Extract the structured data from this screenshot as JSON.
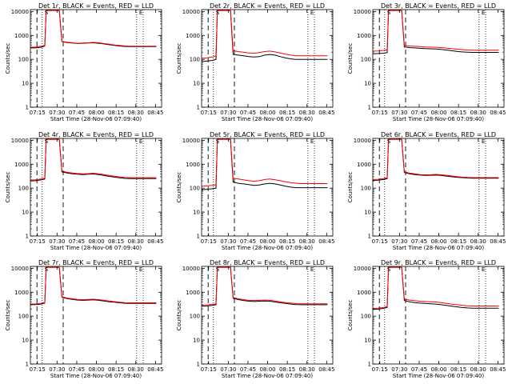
{
  "chart_data": [
    {
      "type": "line",
      "title": "Det 1r, BLACK = Events, RED = LLD",
      "xlabel": "Start Time (28-Nov-06 07:09:40)",
      "ylabel": "Counts/sec",
      "series": [
        {
          "name": "BLACK = Events",
          "color": "#000000",
          "values": [
            300,
            300,
            320,
            360,
            11000,
            11000,
            11000,
            550,
            500,
            480,
            460,
            470,
            480,
            490,
            470,
            440,
            410,
            380,
            360,
            345,
            340,
            340,
            340,
            340
          ]
        },
        {
          "name": "RED = LLD",
          "color": "#ff0000",
          "values": [
            320,
            330,
            350,
            380,
            11000,
            11000,
            11000,
            560,
            520,
            490,
            470,
            480,
            490,
            510,
            490,
            460,
            430,
            400,
            380,
            360,
            355,
            355,
            355,
            355
          ]
        }
      ]
    },
    {
      "type": "line",
      "title": "Det 2r, BLACK = Events, RED = LLD",
      "xlabel": "Start Time (28-Nov-06 07:09:40)",
      "ylabel": "Counts/sec",
      "series": [
        {
          "name": "BLACK = Events",
          "color": "#000000",
          "values": [
            80,
            85,
            90,
            100,
            11000,
            11000,
            11000,
            160,
            150,
            140,
            130,
            125,
            130,
            150,
            160,
            150,
            130,
            115,
            105,
            100,
            100,
            100,
            100,
            100
          ]
        },
        {
          "name": "RED = LLD",
          "color": "#ff0000",
          "values": [
            110,
            115,
            125,
            140,
            11000,
            11000,
            11000,
            230,
            210,
            200,
            185,
            180,
            190,
            210,
            220,
            205,
            185,
            165,
            150,
            140,
            140,
            140,
            140,
            140
          ]
        }
      ]
    },
    {
      "type": "line",
      "title": "Det 3r, BLACK = Events, RED = LLD",
      "xlabel": "Start Time (28-Nov-06 07:09:40)",
      "ylabel": "Counts/sec",
      "series": [
        {
          "name": "BLACK = Events",
          "color": "#000000",
          "values": [
            170,
            175,
            180,
            190,
            11000,
            11000,
            11000,
            330,
            310,
            300,
            290,
            280,
            275,
            270,
            260,
            245,
            230,
            215,
            205,
            200,
            195,
            195,
            195,
            195
          ]
        },
        {
          "name": "RED = LLD",
          "color": "#ff0000",
          "values": [
            220,
            225,
            235,
            250,
            11000,
            11000,
            11000,
            380,
            360,
            350,
            340,
            330,
            325,
            320,
            310,
            295,
            280,
            265,
            255,
            245,
            240,
            240,
            240,
            240
          ]
        }
      ]
    },
    {
      "type": "line",
      "title": "Det 4r, BLACK = Events, RED = LLD",
      "xlabel": "Start Time (28-Nov-06 07:09:40)",
      "ylabel": "Counts/sec",
      "series": [
        {
          "name": "BLACK = Events",
          "color": "#000000",
          "values": [
            200,
            205,
            220,
            240,
            11000,
            11000,
            11000,
            480,
            430,
            400,
            380,
            370,
            380,
            390,
            370,
            340,
            310,
            290,
            270,
            255,
            250,
            250,
            250,
            250
          ]
        },
        {
          "name": "RED = LLD",
          "color": "#ff0000",
          "values": [
            220,
            225,
            240,
            260,
            11000,
            11000,
            11000,
            520,
            460,
            430,
            410,
            395,
            405,
            420,
            400,
            370,
            340,
            315,
            295,
            280,
            275,
            275,
            275,
            275
          ]
        }
      ]
    },
    {
      "type": "line",
      "title": "Det 5r, BLACK = Events, RED = LLD",
      "xlabel": "Start Time (28-Nov-06 07:09:40)",
      "ylabel": "Counts/sec",
      "series": [
        {
          "name": "BLACK = Events",
          "color": "#000000",
          "values": [
            85,
            90,
            95,
            100,
            11000,
            11000,
            11000,
            180,
            160,
            150,
            140,
            130,
            135,
            150,
            160,
            150,
            135,
            120,
            110,
            105,
            105,
            105,
            105,
            105
          ]
        },
        {
          "name": "RED = LLD",
          "color": "#ff0000",
          "values": [
            120,
            125,
            130,
            140,
            11000,
            11000,
            11000,
            260,
            240,
            220,
            205,
            195,
            205,
            230,
            240,
            225,
            205,
            185,
            170,
            160,
            155,
            155,
            155,
            155
          ]
        }
      ]
    },
    {
      "type": "line",
      "title": "Det 6r, BLACK = Events, RED = LLD",
      "xlabel": "Start Time (28-Nov-06 07:09:40)",
      "ylabel": "Counts/sec",
      "series": [
        {
          "name": "BLACK = Events",
          "color": "#000000",
          "values": [
            210,
            215,
            230,
            250,
            11000,
            11000,
            11000,
            450,
            400,
            370,
            350,
            340,
            345,
            350,
            340,
            320,
            300,
            285,
            275,
            265,
            260,
            260,
            260,
            260
          ]
        },
        {
          "name": "RED = LLD",
          "color": "#ff0000",
          "values": [
            230,
            235,
            250,
            270,
            11000,
            11000,
            11000,
            480,
            425,
            395,
            370,
            360,
            365,
            375,
            365,
            345,
            325,
            305,
            290,
            280,
            275,
            275,
            275,
            275
          ]
        }
      ]
    },
    {
      "type": "line",
      "title": "Det 7r, BLACK = Events, RED = LLD",
      "xlabel": "Start Time (28-Nov-06 07:09:40)",
      "ylabel": "Counts/sec",
      "series": [
        {
          "name": "BLACK = Events",
          "color": "#000000",
          "values": [
            300,
            305,
            320,
            350,
            11000,
            11000,
            11000,
            620,
            540,
            500,
            470,
            460,
            470,
            480,
            460,
            430,
            400,
            380,
            360,
            345,
            340,
            340,
            340,
            340
          ]
        },
        {
          "name": "RED = LLD",
          "color": "#ff0000",
          "values": [
            320,
            325,
            340,
            370,
            11000,
            11000,
            11000,
            650,
            570,
            530,
            500,
            490,
            500,
            510,
            490,
            460,
            430,
            405,
            385,
            370,
            365,
            365,
            365,
            365
          ]
        }
      ]
    },
    {
      "type": "line",
      "title": "Det 8r, BLACK = Events, RED = LLD",
      "xlabel": "Start Time (28-Nov-06 07:09:40)",
      "ylabel": "Counts/sec",
      "series": [
        {
          "name": "BLACK = Events",
          "color": "#000000",
          "values": [
            260,
            265,
            280,
            300,
            11000,
            11000,
            11000,
            560,
            490,
            450,
            420,
            410,
            420,
            430,
            420,
            390,
            360,
            340,
            320,
            305,
            300,
            300,
            300,
            300
          ]
        },
        {
          "name": "RED = LLD",
          "color": "#ff0000",
          "values": [
            290,
            295,
            310,
            330,
            11000,
            11000,
            11000,
            600,
            530,
            490,
            460,
            450,
            460,
            470,
            460,
            430,
            395,
            370,
            350,
            335,
            330,
            330,
            330,
            330
          ]
        }
      ]
    },
    {
      "type": "line",
      "title": "Det 9r, BLACK = Events, RED = LLD",
      "xlabel": "Start Time (28-Nov-06 07:09:40)",
      "ylabel": "Counts/sec",
      "series": [
        {
          "name": "BLACK = Events",
          "color": "#000000",
          "values": [
            190,
            195,
            210,
            230,
            11000,
            11000,
            11000,
            450,
            400,
            370,
            350,
            340,
            330,
            320,
            300,
            280,
            260,
            245,
            230,
            220,
            215,
            215,
            215,
            215
          ]
        },
        {
          "name": "RED = LLD",
          "color": "#ff0000",
          "values": [
            210,
            215,
            230,
            250,
            11000,
            11000,
            11000,
            520,
            470,
            440,
            420,
            410,
            400,
            390,
            370,
            345,
            320,
            300,
            285,
            270,
            265,
            265,
            265,
            265
          ]
        }
      ]
    }
  ],
  "shared": {
    "ytick_labels": [
      "1",
      "10",
      "100",
      "1000",
      "10000"
    ],
    "ytick_values": [
      1,
      10,
      100,
      1000,
      10000
    ],
    "ylim": [
      1,
      12000
    ],
    "yscale": "log",
    "xtick_labels": [
      "07:15",
      "07:30",
      "07:45",
      "08:00",
      "08:15",
      "08:30",
      "08:45"
    ],
    "xtick_minutes": [
      5.33,
      20.33,
      35.33,
      50.33,
      65.33,
      80.33,
      95.33
    ],
    "xlim_minutes": [
      0,
      100
    ],
    "sample_minutes": [
      0,
      4,
      8,
      11,
      12,
      18,
      22,
      24,
      28,
      32,
      36,
      40,
      44,
      48,
      52,
      56,
      60,
      64,
      68,
      72,
      76,
      80,
      88,
      96
    ],
    "marker_S": {
      "label": "S",
      "minute": 9
    },
    "marker_E": {
      "label": "E",
      "minute": 81
    },
    "dotted_lines_minutes": [
      9,
      81,
      86
    ],
    "dashed_lines_minutes": [
      5,
      25
    ],
    "colors": {
      "events": "#000000",
      "lld": "#ff0000",
      "axis": "#000000",
      "background": "#ffffff"
    }
  }
}
